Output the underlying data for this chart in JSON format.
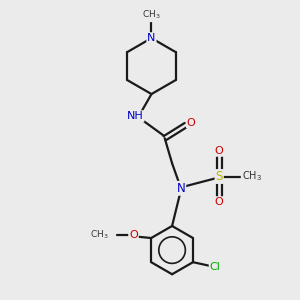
{
  "bg_color": "#ebebeb",
  "atom_colors": {
    "C": "#1a1a1a",
    "N": "#0000cc",
    "O": "#cc0000",
    "S": "#b8b800",
    "Cl": "#00aa00",
    "H": "#5a9090"
  },
  "bond_color": "#1a1a1a",
  "bond_lw": 1.6,
  "figsize": [
    3.0,
    3.0
  ],
  "dpi": 100
}
